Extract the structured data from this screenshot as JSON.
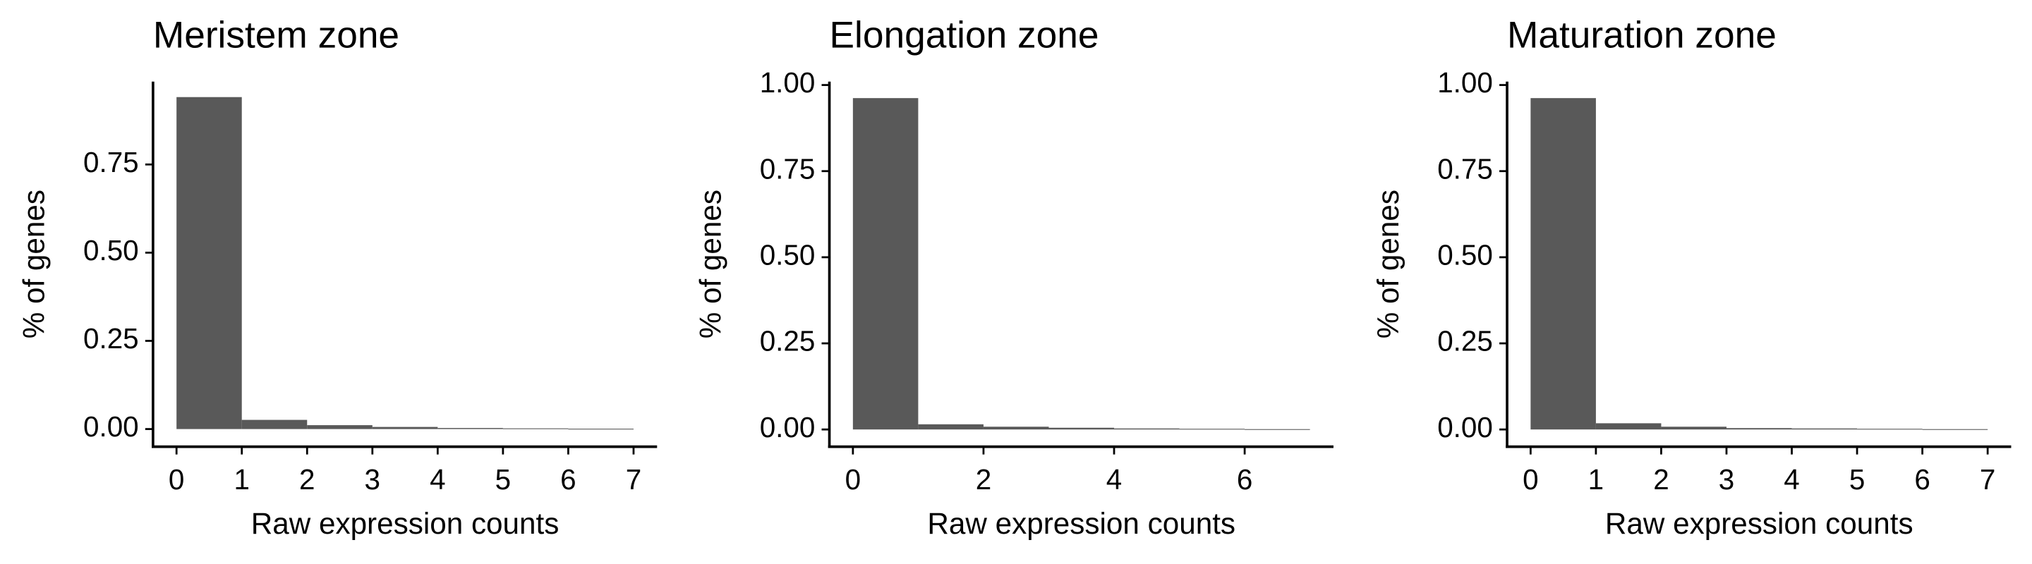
{
  "chart_data": [
    {
      "type": "histogram",
      "title": "Meristem zone",
      "xlabel": "Raw expression counts",
      "ylabel": "% of genes",
      "bins": [
        0,
        1,
        2,
        3,
        4,
        5,
        6,
        7
      ],
      "values": [
        0.941,
        0.026,
        0.011,
        0.006,
        0.003,
        0.002,
        0.001
      ],
      "color": "#595959",
      "xlim": [
        -0.36,
        7.36
      ],
      "ylim": [
        -0.05,
        0.985
      ],
      "xticks": [
        0,
        1,
        2,
        3,
        4,
        5,
        6,
        7
      ],
      "yticks": [
        {
          "value": 0,
          "label": "0.00"
        },
        0.25,
        {
          "value": 0.5,
          "label": "0.50"
        },
        0.75
      ]
    },
    {
      "type": "histogram",
      "title": "Elongation zone",
      "xlabel": "Raw expression counts",
      "ylabel": "% of genes",
      "bins": [
        0,
        1,
        2,
        3,
        4,
        5,
        6,
        7
      ],
      "values": [
        0.962,
        0.015,
        0.008,
        0.005,
        0.003,
        0.002,
        0.001
      ],
      "color": "#595959",
      "xlim": [
        -0.36,
        7.36
      ],
      "ylim": [
        -0.05,
        1.01
      ],
      "xticks": [
        0,
        2,
        4,
        6
      ],
      "yticks": [
        {
          "value": 0,
          "label": "0.00"
        },
        0.25,
        {
          "value": 0.5,
          "label": "0.50"
        },
        0.75,
        {
          "value": 1,
          "label": "1.00"
        }
      ]
    },
    {
      "type": "histogram",
      "title": "Maturation zone",
      "xlabel": "Raw expression counts",
      "ylabel": "% of genes",
      "bins": [
        0,
        1,
        2,
        3,
        4,
        5,
        6,
        7
      ],
      "values": [
        0.962,
        0.018,
        0.008,
        0.004,
        0.003,
        0.002,
        0.001
      ],
      "color": "#595959",
      "xlim": [
        -0.36,
        7.36
      ],
      "ylim": [
        -0.05,
        1.01
      ],
      "xticks": [
        0,
        1,
        2,
        3,
        4,
        5,
        6,
        7
      ],
      "yticks": [
        {
          "value": 0,
          "label": "0.00"
        },
        0.25,
        {
          "value": 0.5,
          "label": "0.50"
        },
        0.75,
        {
          "value": 1,
          "label": "1.00"
        }
      ]
    }
  ]
}
